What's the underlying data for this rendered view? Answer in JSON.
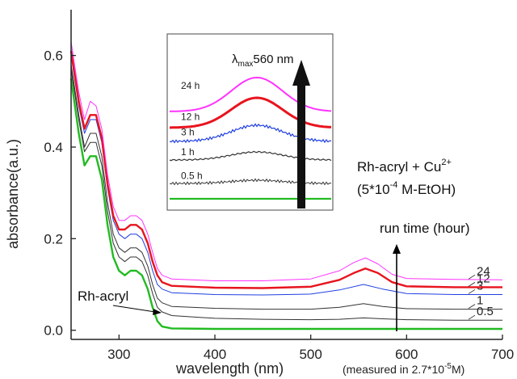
{
  "chart_data": {
    "type": "line",
    "xlabel": "wavelength (nm)",
    "ylabel": "absorbance(a.u.)",
    "x_note_prefix": "(measured in 2.7*10",
    "x_note_exp": "-5",
    "x_note_suffix": "M)",
    "xlim": [
      250,
      700
    ],
    "ylim": [
      -0.02,
      0.7
    ],
    "xticks": [
      300,
      400,
      500,
      600,
      700
    ],
    "yticks": [
      0.0,
      0.2,
      0.4,
      0.6
    ],
    "ytick_labels": [
      "0.0",
      "0.2",
      "0.4",
      "0.6"
    ],
    "grid": false,
    "legend": "none",
    "series": [
      {
        "name": "Rh-acryl",
        "color": "#22bb22",
        "values": [
          [
            250,
            0.55
          ],
          [
            258,
            0.43
          ],
          [
            264,
            0.36
          ],
          [
            270,
            0.38
          ],
          [
            276,
            0.38
          ],
          [
            282,
            0.33
          ],
          [
            288,
            0.23
          ],
          [
            294,
            0.16
          ],
          [
            300,
            0.13
          ],
          [
            306,
            0.12
          ],
          [
            312,
            0.13
          ],
          [
            318,
            0.13
          ],
          [
            324,
            0.12
          ],
          [
            330,
            0.09
          ],
          [
            335,
            0.05
          ],
          [
            340,
            0.02
          ],
          [
            345,
            0.008
          ],
          [
            355,
            0.004
          ],
          [
            400,
            0.003
          ],
          [
            500,
            0.003
          ],
          [
            560,
            0.003
          ],
          [
            600,
            0.003
          ],
          [
            700,
            0.003
          ]
        ]
      },
      {
        "name": "0.5",
        "color": "#333333",
        "values": [
          [
            250,
            0.57
          ],
          [
            258,
            0.46
          ],
          [
            264,
            0.39
          ],
          [
            270,
            0.41
          ],
          [
            276,
            0.41
          ],
          [
            282,
            0.36
          ],
          [
            288,
            0.26
          ],
          [
            294,
            0.19
          ],
          [
            300,
            0.16
          ],
          [
            306,
            0.15
          ],
          [
            312,
            0.16
          ],
          [
            318,
            0.16
          ],
          [
            324,
            0.15
          ],
          [
            330,
            0.12
          ],
          [
            335,
            0.08
          ],
          [
            340,
            0.05
          ],
          [
            345,
            0.04
          ],
          [
            355,
            0.032
          ],
          [
            400,
            0.026
          ],
          [
            450,
            0.024
          ],
          [
            500,
            0.023
          ],
          [
            530,
            0.024
          ],
          [
            555,
            0.027
          ],
          [
            575,
            0.025
          ],
          [
            600,
            0.023
          ],
          [
            650,
            0.022
          ],
          [
            700,
            0.022
          ]
        ]
      },
      {
        "name": "1",
        "color": "#333333",
        "values": [
          [
            250,
            0.58
          ],
          [
            258,
            0.47
          ],
          [
            264,
            0.4
          ],
          [
            270,
            0.43
          ],
          [
            276,
            0.43
          ],
          [
            282,
            0.38
          ],
          [
            288,
            0.28
          ],
          [
            294,
            0.21
          ],
          [
            300,
            0.18
          ],
          [
            306,
            0.17
          ],
          [
            312,
            0.18
          ],
          [
            318,
            0.18
          ],
          [
            324,
            0.17
          ],
          [
            330,
            0.14
          ],
          [
            335,
            0.1
          ],
          [
            340,
            0.07
          ],
          [
            345,
            0.06
          ],
          [
            355,
            0.052
          ],
          [
            400,
            0.048
          ],
          [
            450,
            0.046
          ],
          [
            500,
            0.046
          ],
          [
            530,
            0.05
          ],
          [
            555,
            0.058
          ],
          [
            575,
            0.052
          ],
          [
            600,
            0.047
          ],
          [
            650,
            0.046
          ],
          [
            700,
            0.046
          ]
        ]
      },
      {
        "name": "3",
        "color": "#1f3fe0",
        "values": [
          [
            250,
            0.6
          ],
          [
            258,
            0.49
          ],
          [
            264,
            0.43
          ],
          [
            270,
            0.46
          ],
          [
            276,
            0.46
          ],
          [
            282,
            0.41
          ],
          [
            288,
            0.31
          ],
          [
            294,
            0.24
          ],
          [
            300,
            0.21
          ],
          [
            306,
            0.2
          ],
          [
            312,
            0.21
          ],
          [
            318,
            0.21
          ],
          [
            324,
            0.2
          ],
          [
            330,
            0.17
          ],
          [
            335,
            0.13
          ],
          [
            340,
            0.1
          ],
          [
            345,
            0.09
          ],
          [
            355,
            0.082
          ],
          [
            400,
            0.078
          ],
          [
            450,
            0.077
          ],
          [
            500,
            0.079
          ],
          [
            530,
            0.088
          ],
          [
            555,
            0.1
          ],
          [
            575,
            0.09
          ],
          [
            600,
            0.08
          ],
          [
            650,
            0.078
          ],
          [
            700,
            0.078
          ]
        ]
      },
      {
        "name": "12",
        "color": "#e8141e",
        "values": [
          [
            250,
            0.61
          ],
          [
            258,
            0.5
          ],
          [
            264,
            0.44
          ],
          [
            270,
            0.47
          ],
          [
            276,
            0.47
          ],
          [
            282,
            0.42
          ],
          [
            288,
            0.32
          ],
          [
            294,
            0.25
          ],
          [
            300,
            0.22
          ],
          [
            306,
            0.22
          ],
          [
            312,
            0.23
          ],
          [
            318,
            0.23
          ],
          [
            324,
            0.22
          ],
          [
            330,
            0.19
          ],
          [
            335,
            0.15
          ],
          [
            340,
            0.12
          ],
          [
            345,
            0.105
          ],
          [
            355,
            0.097
          ],
          [
            400,
            0.093
          ],
          [
            450,
            0.092
          ],
          [
            500,
            0.095
          ],
          [
            530,
            0.11
          ],
          [
            545,
            0.125
          ],
          [
            557,
            0.135
          ],
          [
            570,
            0.125
          ],
          [
            585,
            0.105
          ],
          [
            600,
            0.096
          ],
          [
            650,
            0.094
          ],
          [
            700,
            0.094
          ]
        ]
      },
      {
        "name": "24",
        "color": "#ff33ff",
        "values": [
          [
            250,
            0.63
          ],
          [
            258,
            0.52
          ],
          [
            264,
            0.46
          ],
          [
            270,
            0.5
          ],
          [
            276,
            0.49
          ],
          [
            282,
            0.44
          ],
          [
            288,
            0.34
          ],
          [
            294,
            0.27
          ],
          [
            300,
            0.24
          ],
          [
            306,
            0.24
          ],
          [
            312,
            0.25
          ],
          [
            318,
            0.25
          ],
          [
            324,
            0.24
          ],
          [
            330,
            0.21
          ],
          [
            335,
            0.17
          ],
          [
            340,
            0.135
          ],
          [
            345,
            0.12
          ],
          [
            355,
            0.112
          ],
          [
            400,
            0.108
          ],
          [
            450,
            0.108
          ],
          [
            500,
            0.112
          ],
          [
            530,
            0.13
          ],
          [
            545,
            0.148
          ],
          [
            557,
            0.158
          ],
          [
            570,
            0.145
          ],
          [
            585,
            0.122
          ],
          [
            600,
            0.113
          ],
          [
            650,
            0.111
          ],
          [
            700,
            0.11
          ]
        ]
      }
    ],
    "annotations": {
      "run_time": "run time (hour)",
      "rh_acryl": "Rh-acryl",
      "compound": "Rh-acryl + Cu",
      "compound_sup": "2+",
      "solvent_prefix": "(5*10",
      "solvent_exp": "-4",
      "solvent_suffix": " M-EtOH)"
    },
    "inset": {
      "lambda_symbol": "λ",
      "lambda_sub": "max",
      "lambda_text": "560 nm",
      "curves": [
        {
          "label": "24 h",
          "color": "#ff33ff"
        },
        {
          "label": "12 h",
          "color": "#e8141e"
        },
        {
          "label": "3 h",
          "color": "#1f3fe0"
        },
        {
          "label": "1 h",
          "color": "#333333"
        },
        {
          "label": "0.5 h",
          "color": "#333333"
        },
        {
          "label": "",
          "color": "#22bb22"
        }
      ]
    }
  }
}
